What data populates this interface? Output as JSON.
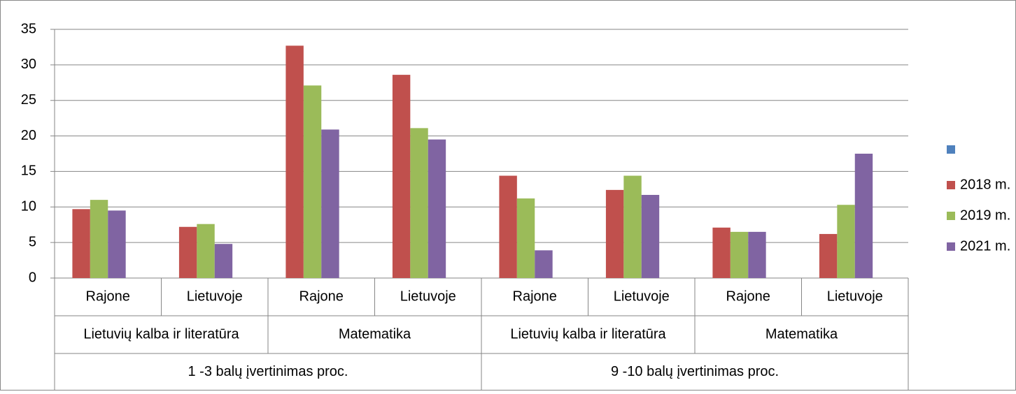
{
  "chart_data": {
    "type": "bar",
    "categories": [
      "Rajone",
      "Lietuvoje",
      "Rajone",
      "Lietuvoje",
      "Rajone",
      "Lietuvoje",
      "Rajone",
      "Lietuvoje"
    ],
    "groups": [
      "Lietuvių kalba ir literatūra",
      "Matematika",
      "Lietuvių kalba ir literatūra",
      "Matematika"
    ],
    "supergroups": [
      "1 -3 balų įvertinimas proc.",
      "9 -10 balų įvertinimas proc."
    ],
    "series": [
      {
        "color": "#4f81bd",
        "values": [
          null,
          null,
          null,
          null,
          null,
          null,
          null,
          null
        ]
      },
      {
        "name": "2018 m.",
        "color": "#c0504d",
        "values": [
          9.7,
          7.2,
          32.7,
          28.6,
          14.4,
          12.4,
          7.1,
          6.2
        ]
      },
      {
        "name": "2019 m.",
        "color": "#9bbb59",
        "values": [
          11.0,
          7.6,
          27.1,
          21.1,
          11.2,
          14.4,
          6.5,
          10.3
        ]
      },
      {
        "name": "2021 m.",
        "color": "#8064a2",
        "values": [
          9.5,
          4.8,
          20.9,
          19.5,
          3.9,
          11.7,
          6.5,
          17.5
        ]
      }
    ],
    "ylim": [
      0,
      35
    ],
    "yticks": [
      0,
      5,
      10,
      15,
      20,
      25,
      30,
      35
    ],
    "grid": true,
    "legend": "right"
  }
}
